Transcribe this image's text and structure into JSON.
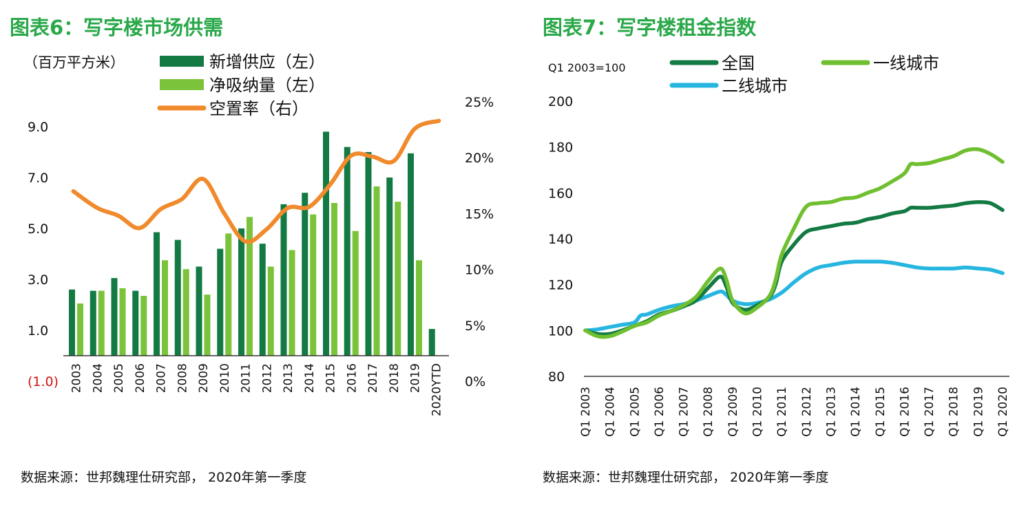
{
  "colors": {
    "title": "#2aa84a",
    "supply": "#137a43",
    "absorption": "#7bc33a",
    "vacancy": "#f08a2c",
    "national": "#137a43",
    "tier1": "#6fbf30",
    "tier2": "#27b6e0",
    "negative_tick": "#d01010"
  },
  "chart_data": [
    {
      "type": "bar",
      "title": "图表6：写字楼市场供需",
      "ylabel": "（百万平方米）",
      "ylim": [
        -1.0,
        9.0
      ],
      "yticks": [
        "9.0",
        "7.0",
        "5.0",
        "3.0",
        "1.0",
        "(1.0)"
      ],
      "y2lim": [
        0,
        25
      ],
      "y2ticks": [
        "25%",
        "20%",
        "15%",
        "10%",
        "5%",
        "0%"
      ],
      "categories": [
        "2003",
        "2004",
        "2005",
        "2006",
        "2007",
        "2008",
        "2009",
        "2010",
        "2011",
        "2012",
        "2013",
        "2014",
        "2015",
        "2016",
        "2017",
        "2018",
        "2019",
        "2020YTD"
      ],
      "series": [
        {
          "name": "新增供应（左）",
          "values": [
            2.6,
            2.55,
            3.05,
            2.55,
            4.85,
            4.55,
            3.5,
            4.2,
            5.0,
            4.4,
            5.95,
            6.4,
            8.8,
            8.2,
            8.0,
            7.0,
            7.95,
            1.05
          ]
        },
        {
          "name": "净吸纳量（左）",
          "values": [
            2.05,
            2.55,
            2.65,
            2.35,
            3.75,
            3.4,
            2.4,
            4.8,
            5.45,
            3.5,
            4.15,
            5.55,
            6.0,
            4.9,
            6.65,
            6.05,
            3.75,
            null
          ]
        }
      ],
      "secondary_series": [
        {
          "name": "空置率（右）",
          "values": [
            17.0,
            15.5,
            14.8,
            13.7,
            15.4,
            16.3,
            18.1,
            15.0,
            12.5,
            13.6,
            15.5,
            15.6,
            17.6,
            20.2,
            20.1,
            19.7,
            22.6,
            23.3
          ]
        }
      ],
      "source": "数据来源：世邦魏理仕研究部， 2020年第一季度"
    },
    {
      "type": "line",
      "title": "图表7：写字楼租金指数",
      "ylabel": "Q1 2003=100",
      "ylim": [
        80,
        200
      ],
      "yticks": [
        "200",
        "180",
        "160",
        "140",
        "120",
        "100",
        "80"
      ],
      "xticks": [
        "Q1 2003",
        "Q1 2004",
        "Q1 2005",
        "Q1 2006",
        "Q1 2007",
        "Q1 2008",
        "Q1 2009",
        "Q1 2010",
        "Q1 2011",
        "Q1 2012",
        "Q1 2013",
        "Q1 2014",
        "Q1 2015",
        "Q1 2016",
        "Q1 2017",
        "Q1 2018",
        "Q1 2019",
        "Q1 2020"
      ],
      "x_start": 2003.0,
      "x_end": 2020.0,
      "series": [
        {
          "name": "全国",
          "points": [
            [
              2003.0,
              100
            ],
            [
              2003.5,
              98.5
            ],
            [
              2004.0,
              98.5
            ],
            [
              2004.5,
              100
            ],
            [
              2005.0,
              102
            ],
            [
              2005.5,
              104
            ],
            [
              2006.0,
              107
            ],
            [
              2006.5,
              108.5
            ],
            [
              2007.0,
              110.5
            ],
            [
              2007.5,
              113
            ],
            [
              2008.0,
              118.5
            ],
            [
              2008.5,
              123.5
            ],
            [
              2008.75,
              119
            ],
            [
              2009.0,
              112
            ],
            [
              2009.5,
              109
            ],
            [
              2010.0,
              111
            ],
            [
              2010.5,
              114.5
            ],
            [
              2010.75,
              120
            ],
            [
              2011.0,
              130
            ],
            [
              2011.5,
              137.5
            ],
            [
              2012.0,
              143
            ],
            [
              2012.5,
              144.5
            ],
            [
              2013.0,
              145.5
            ],
            [
              2013.5,
              146.5
            ],
            [
              2014.0,
              147
            ],
            [
              2014.5,
              148.5
            ],
            [
              2015.0,
              149.5
            ],
            [
              2015.5,
              151
            ],
            [
              2016.0,
              152
            ],
            [
              2016.25,
              153.5
            ],
            [
              2016.5,
              153.5
            ],
            [
              2017.0,
              153.5
            ],
            [
              2017.5,
              154
            ],
            [
              2018.0,
              154.5
            ],
            [
              2018.5,
              155.5
            ],
            [
              2019.0,
              156
            ],
            [
              2019.5,
              155.5
            ],
            [
              2020.0,
              152.5
            ]
          ]
        },
        {
          "name": "一线城市",
          "points": [
            [
              2003.0,
              100
            ],
            [
              2003.5,
              97.5
            ],
            [
              2004.0,
              97.5
            ],
            [
              2004.5,
              99.5
            ],
            [
              2005.0,
              102
            ],
            [
              2005.5,
              103.5
            ],
            [
              2006.0,
              106.5
            ],
            [
              2006.5,
              108.5
            ],
            [
              2007.0,
              111
            ],
            [
              2007.5,
              114.5
            ],
            [
              2008.0,
              121.5
            ],
            [
              2008.5,
              127
            ],
            [
              2008.75,
              122
            ],
            [
              2009.0,
              113
            ],
            [
              2009.5,
              107.5
            ],
            [
              2010.0,
              110
            ],
            [
              2010.5,
              115
            ],
            [
              2010.75,
              122
            ],
            [
              2011.0,
              133
            ],
            [
              2011.5,
              144.5
            ],
            [
              2012.0,
              154
            ],
            [
              2012.5,
              155.5
            ],
            [
              2013.0,
              156
            ],
            [
              2013.5,
              157.5
            ],
            [
              2014.0,
              158
            ],
            [
              2014.5,
              160
            ],
            [
              2015.0,
              162
            ],
            [
              2015.5,
              165
            ],
            [
              2016.0,
              168.5
            ],
            [
              2016.25,
              172.5
            ],
            [
              2016.5,
              172.5
            ],
            [
              2017.0,
              173
            ],
            [
              2017.5,
              174.5
            ],
            [
              2018.0,
              176
            ],
            [
              2018.5,
              178.5
            ],
            [
              2019.0,
              179
            ],
            [
              2019.5,
              177
            ],
            [
              2020.0,
              173.5
            ]
          ]
        },
        {
          "name": "二线城市",
          "points": [
            [
              2003.0,
              100
            ],
            [
              2003.5,
              100.5
            ],
            [
              2004.0,
              101.5
            ],
            [
              2004.5,
              102.5
            ],
            [
              2005.0,
              103.5
            ],
            [
              2005.25,
              106.5
            ],
            [
              2005.5,
              107
            ],
            [
              2006.0,
              109
            ],
            [
              2006.5,
              110.5
            ],
            [
              2007.0,
              111.5
            ],
            [
              2007.5,
              113
            ],
            [
              2008.0,
              115
            ],
            [
              2008.5,
              117
            ],
            [
              2008.75,
              115.5
            ],
            [
              2009.0,
              113
            ],
            [
              2009.5,
              111.5
            ],
            [
              2010.0,
              112
            ],
            [
              2010.5,
              113.5
            ],
            [
              2011.0,
              116.5
            ],
            [
              2011.5,
              121
            ],
            [
              2012.0,
              125
            ],
            [
              2012.5,
              127.5
            ],
            [
              2013.0,
              128.5
            ],
            [
              2013.5,
              129.5
            ],
            [
              2014.0,
              130
            ],
            [
              2014.5,
              130
            ],
            [
              2015.0,
              130
            ],
            [
              2015.5,
              129.5
            ],
            [
              2016.0,
              128.5
            ],
            [
              2016.5,
              127.5
            ],
            [
              2017.0,
              127
            ],
            [
              2017.5,
              127
            ],
            [
              2018.0,
              127
            ],
            [
              2018.5,
              127.5
            ],
            [
              2019.0,
              127
            ],
            [
              2019.5,
              126.5
            ],
            [
              2020.0,
              125
            ]
          ]
        }
      ],
      "source": "数据来源：世邦魏理仕研究部， 2020年第一季度"
    }
  ]
}
